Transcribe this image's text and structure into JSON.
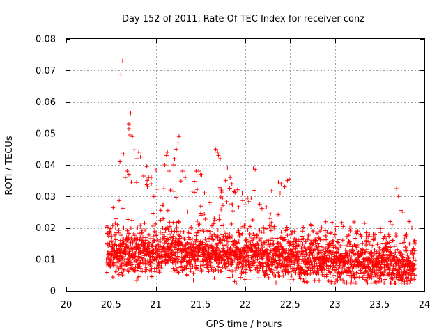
{
  "chart_data": {
    "type": "scatter",
    "title": "Day 152 of 2011, Rate Of TEC Index for receiver conz",
    "xlabel": "GPS time / hours",
    "ylabel": "ROTI / TECUs",
    "xlim": [
      20,
      24
    ],
    "ylim": [
      0,
      0.08
    ],
    "grid": true,
    "x_ticks": [
      20,
      20.5,
      21,
      21.5,
      22,
      22.5,
      23,
      23.5,
      24
    ],
    "x_tick_labels": [
      "20",
      "20.5",
      "21",
      "21.5",
      "22",
      "22.5",
      "23",
      "23.5",
      "24"
    ],
    "y_ticks": [
      0,
      0.01,
      0.02,
      0.03,
      0.04,
      0.05,
      0.06,
      0.07,
      0.08
    ],
    "y_tick_labels": [
      "0",
      "0.01",
      "0.02",
      "0.03",
      "0.04",
      "0.05",
      "0.06",
      "0.07",
      "0.08"
    ],
    "marker": "+",
    "marker_color": "#ff0000",
    "x_data_range": [
      20.45,
      23.9
    ],
    "series": [
      {
        "name": "ROTI",
        "points": [
          [
            20.61,
            0.0688
          ],
          [
            20.63,
            0.073
          ],
          [
            20.72,
            0.0565
          ],
          [
            20.7,
            0.053
          ],
          [
            20.7,
            0.0515
          ],
          [
            20.71,
            0.0495
          ],
          [
            20.74,
            0.049
          ],
          [
            20.76,
            0.0448
          ],
          [
            20.81,
            0.044
          ],
          [
            20.83,
            0.0425
          ],
          [
            20.79,
            0.042
          ],
          [
            20.64,
            0.0435
          ],
          [
            20.6,
            0.041
          ],
          [
            20.68,
            0.038
          ],
          [
            20.7,
            0.037
          ],
          [
            20.66,
            0.036
          ],
          [
            20.9,
            0.0395
          ],
          [
            20.92,
            0.036
          ],
          [
            20.95,
            0.034
          ],
          [
            21.13,
            0.044
          ],
          [
            21.12,
            0.043
          ],
          [
            21.1,
            0.04
          ],
          [
            21.15,
            0.038
          ],
          [
            21.2,
            0.04
          ],
          [
            21.26,
            0.049
          ],
          [
            21.25,
            0.047
          ],
          [
            21.23,
            0.045
          ],
          [
            21.21,
            0.042
          ],
          [
            21.3,
            0.038
          ],
          [
            21.33,
            0.036
          ],
          [
            21.45,
            0.038
          ],
          [
            21.48,
            0.038
          ],
          [
            21.5,
            0.037
          ],
          [
            21.67,
            0.045
          ],
          [
            21.69,
            0.044
          ],
          [
            21.7,
            0.043
          ],
          [
            21.72,
            0.042
          ],
          [
            21.8,
            0.039
          ],
          [
            21.83,
            0.036
          ],
          [
            21.85,
            0.034
          ],
          [
            21.78,
            0.035
          ],
          [
            22.09,
            0.039
          ],
          [
            22.11,
            0.0385
          ],
          [
            22.37,
            0.0345
          ],
          [
            22.4,
            0.034
          ],
          [
            22.47,
            0.035
          ],
          [
            22.49,
            0.0355
          ],
          [
            22.44,
            0.033
          ],
          [
            23.69,
            0.0325
          ],
          [
            23.71,
            0.03
          ],
          [
            23.74,
            0.0255
          ],
          [
            23.76,
            0.025
          ],
          [
            23.83,
            0.022
          ],
          [
            23.86,
            0.02
          ],
          [
            23.62,
            0.022
          ],
          [
            23.64,
            0.021
          ],
          [
            21.88,
            0.003
          ],
          [
            21.9,
            0.0025
          ],
          [
            23.55,
            0.0025
          ],
          [
            22.65,
            0.0035
          ],
          [
            23.22,
            0.004
          ]
        ]
      }
    ]
  }
}
